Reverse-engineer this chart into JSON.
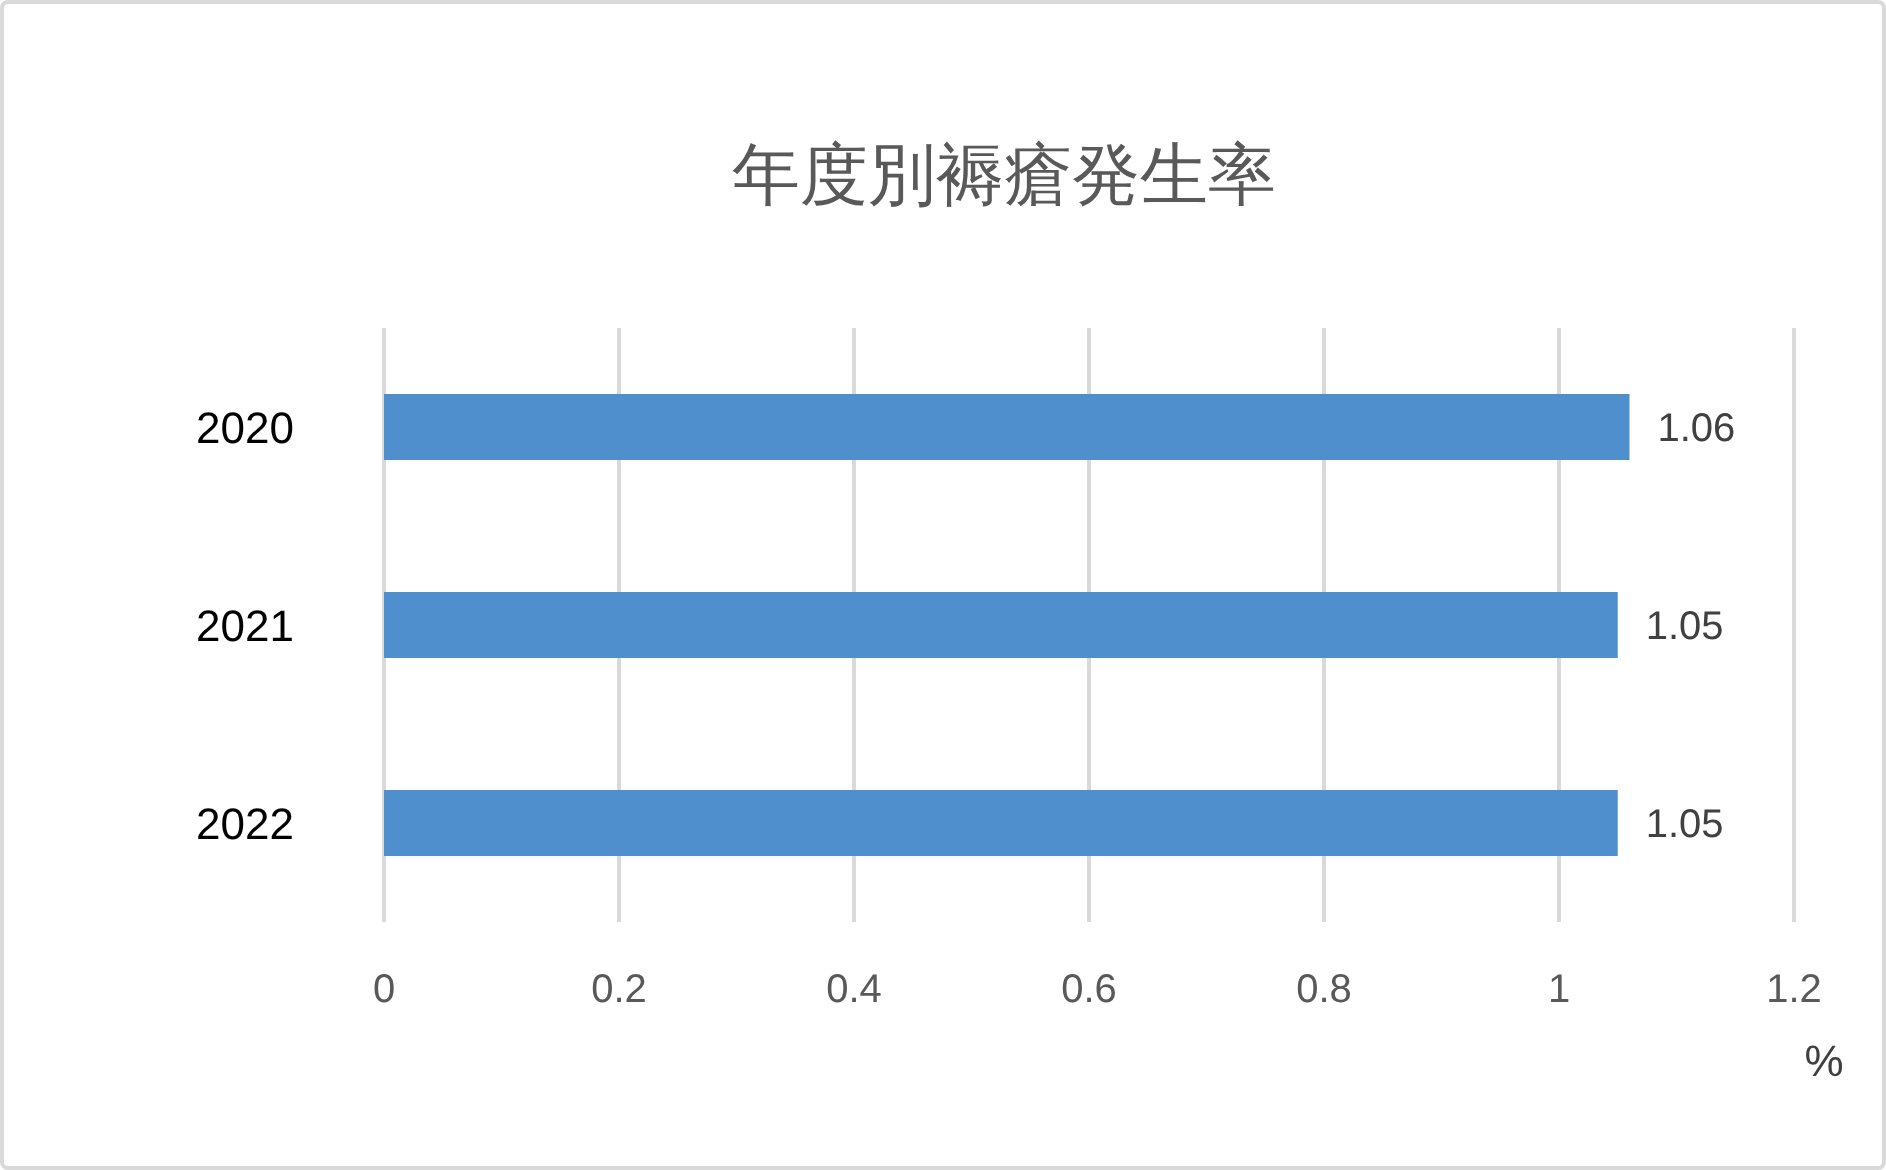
{
  "chart_data": {
    "type": "bar",
    "orientation": "horizontal",
    "title": "年度別褥瘡発生率",
    "xlabel": "%",
    "categories": [
      "2020",
      "2021",
      "2022"
    ],
    "values": [
      1.06,
      1.05,
      1.05
    ],
    "color": "#4f8fcd",
    "xlim": [
      0,
      1.2
    ],
    "xticks": [
      0,
      0.2,
      0.4,
      0.6,
      0.8,
      1,
      1.2
    ],
    "grid": "x",
    "data_labels": true
  }
}
